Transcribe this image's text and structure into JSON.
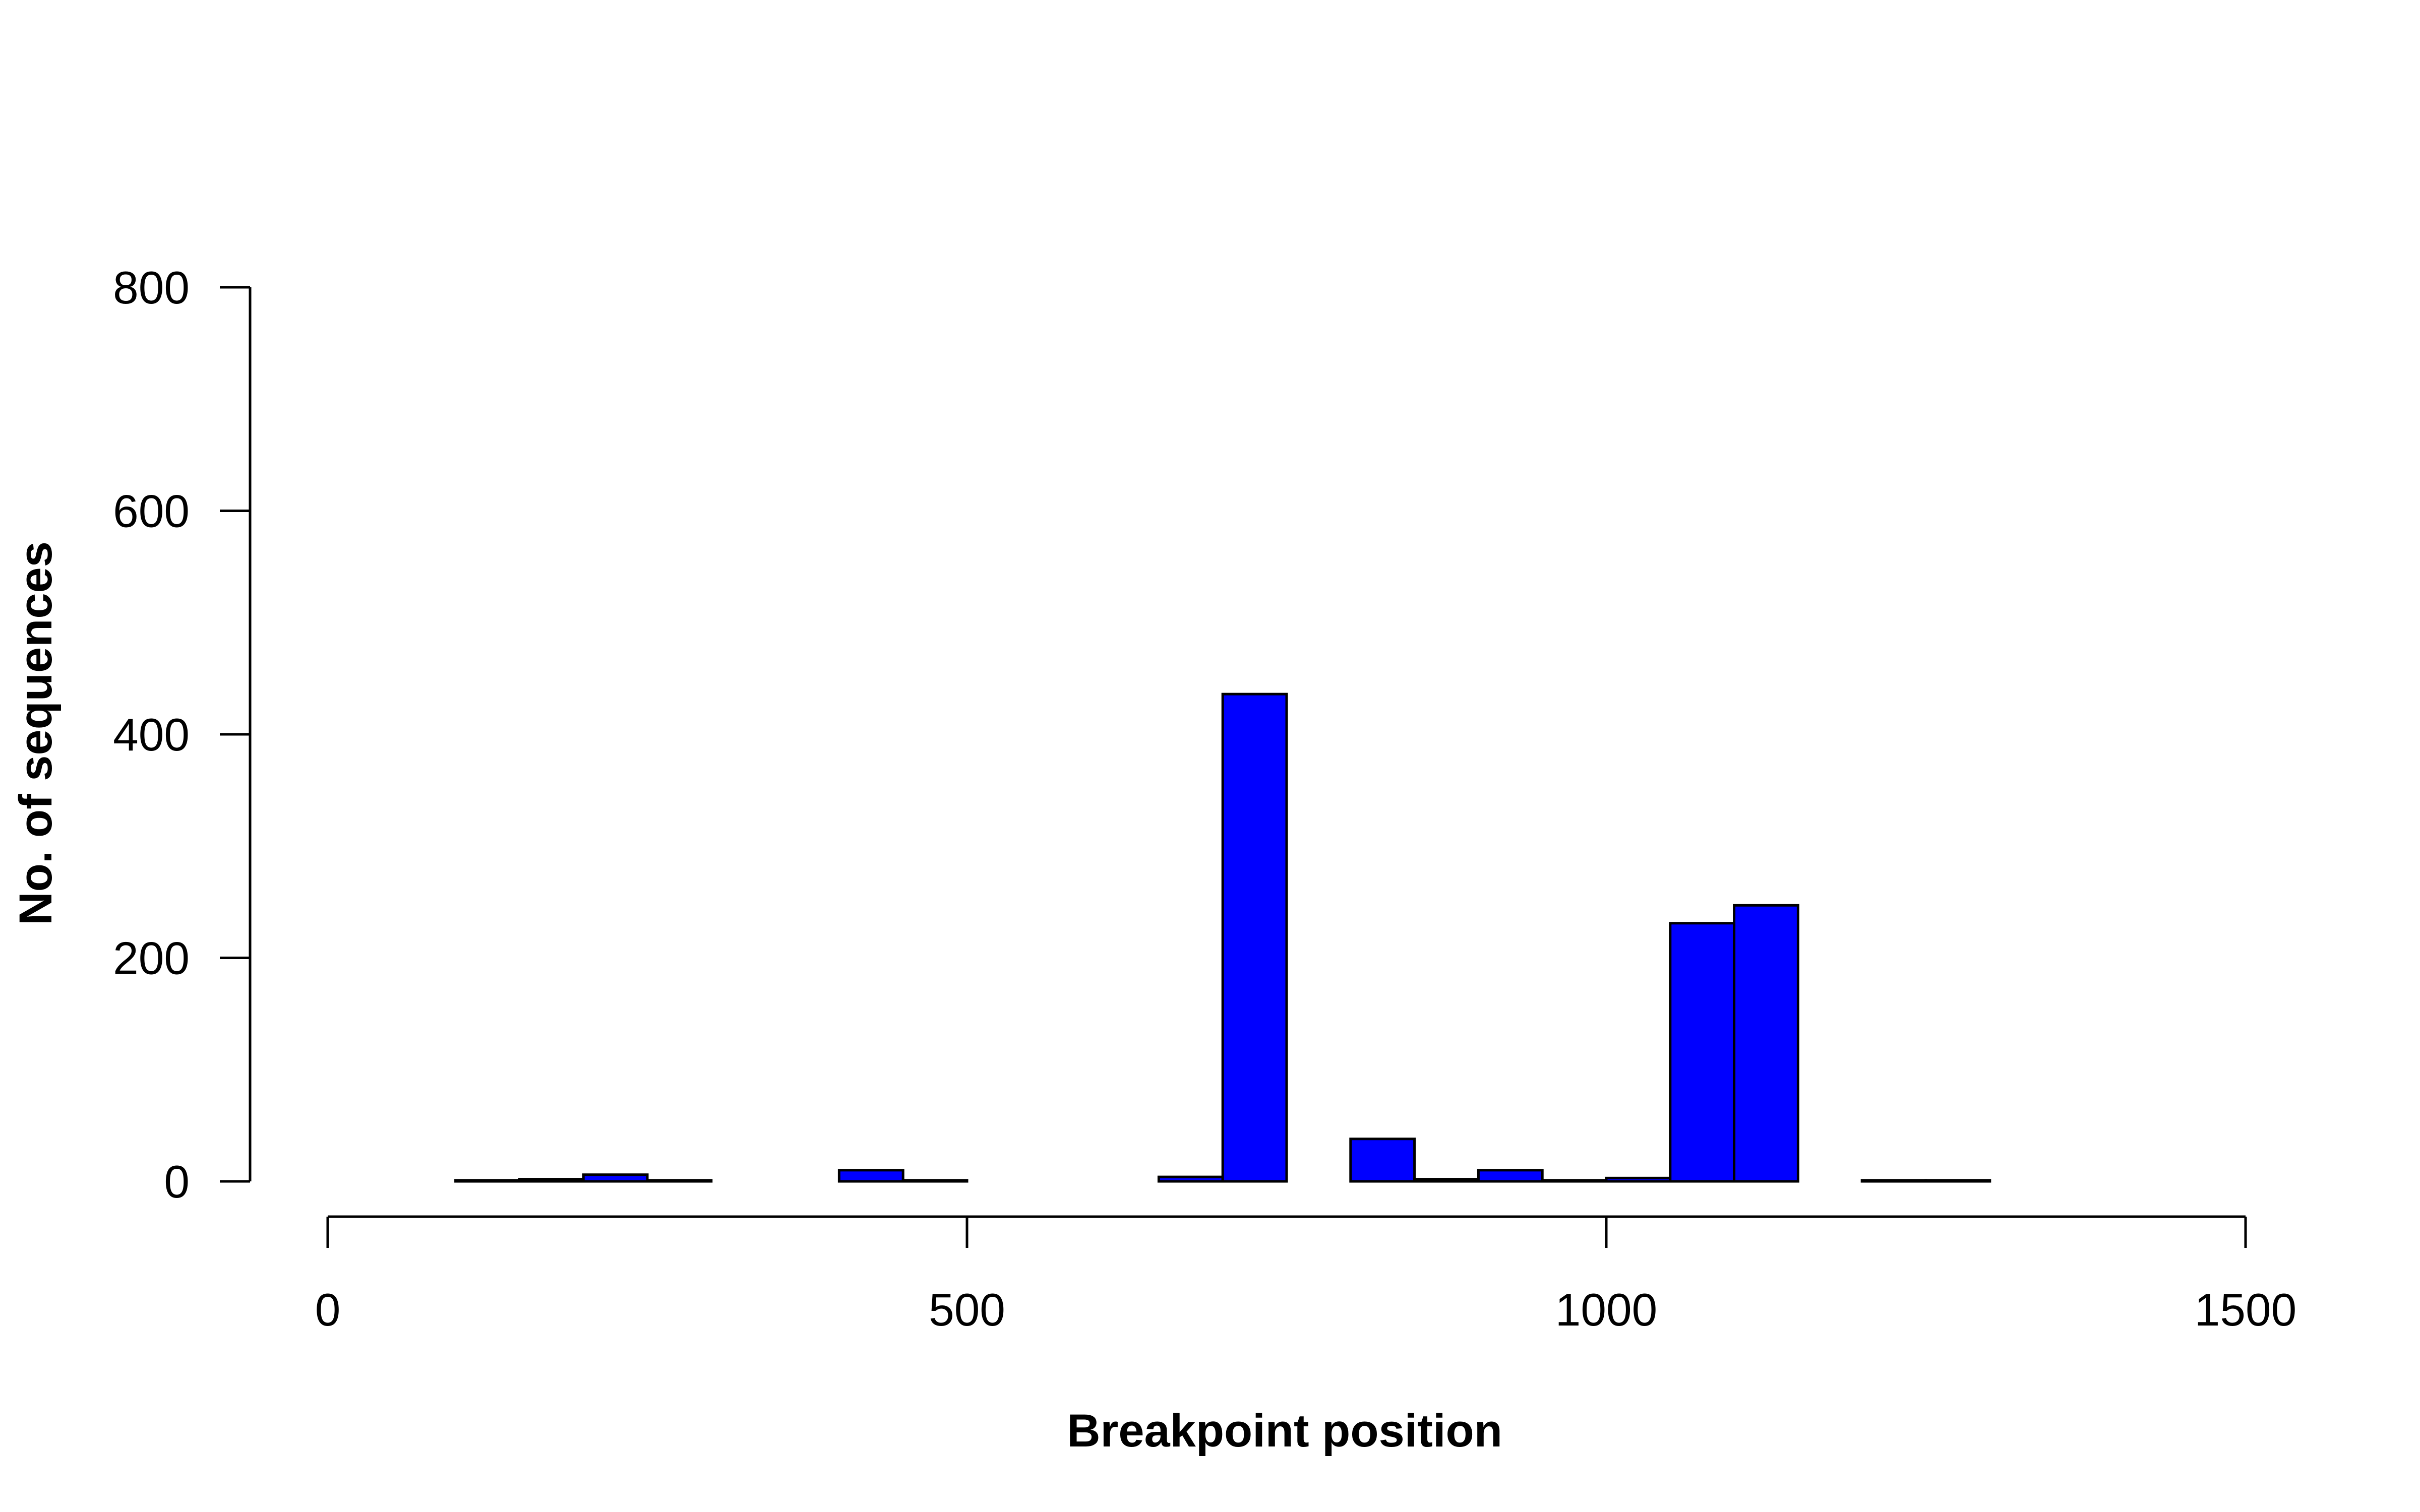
{
  "chart_data": {
    "type": "bar",
    "title": "",
    "xlabel": "Breakpoint position",
    "ylabel": "No. of sequences",
    "xlim": [
      0,
      1500
    ],
    "ylim": [
      0,
      800
    ],
    "x_ticks": [
      "0",
      "500",
      "1000",
      "1500"
    ],
    "y_ticks": [
      "0",
      "200",
      "400",
      "600",
      "800"
    ],
    "grid": false,
    "legend": "none",
    "bar_color": "#0000FF",
    "bar_edge_color": "#000000",
    "bin_width": 50,
    "bins": [
      {
        "x0": 100,
        "x1": 150,
        "count": 1
      },
      {
        "x0": 150,
        "x1": 200,
        "count": 2
      },
      {
        "x0": 200,
        "x1": 250,
        "count": 6
      },
      {
        "x0": 250,
        "x1": 300,
        "count": 1
      },
      {
        "x0": 300,
        "x1": 350,
        "count": 0
      },
      {
        "x0": 350,
        "x1": 400,
        "count": 0
      },
      {
        "x0": 400,
        "x1": 450,
        "count": 10
      },
      {
        "x0": 450,
        "x1": 500,
        "count": 1
      },
      {
        "x0": 500,
        "x1": 550,
        "count": 0
      },
      {
        "x0": 550,
        "x1": 600,
        "count": 0
      },
      {
        "x0": 600,
        "x1": 650,
        "count": 0
      },
      {
        "x0": 650,
        "x1": 700,
        "count": 4
      },
      {
        "x0": 700,
        "x1": 750,
        "count": 436
      },
      {
        "x0": 750,
        "x1": 800,
        "count": 0
      },
      {
        "x0": 800,
        "x1": 850,
        "count": 38
      },
      {
        "x0": 850,
        "x1": 900,
        "count": 2
      },
      {
        "x0": 900,
        "x1": 950,
        "count": 10
      },
      {
        "x0": 950,
        "x1": 1000,
        "count": 1
      },
      {
        "x0": 1000,
        "x1": 1050,
        "count": 3
      },
      {
        "x0": 1050,
        "x1": 1100,
        "count": 231
      },
      {
        "x0": 1100,
        "x1": 1150,
        "count": 247
      },
      {
        "x0": 1150,
        "x1": 1200,
        "count": 0
      },
      {
        "x0": 1200,
        "x1": 1250,
        "count": 1
      },
      {
        "x0": 1250,
        "x1": 1300,
        "count": 1
      }
    ]
  }
}
